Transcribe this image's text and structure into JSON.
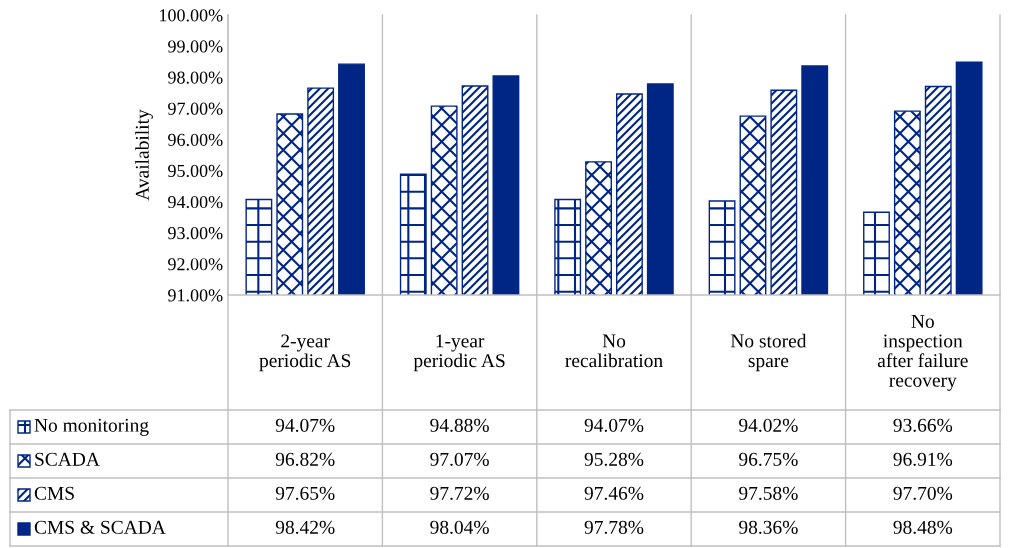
{
  "chart_data": {
    "type": "bar",
    "ylabel": "Availability",
    "categories": [
      "2-year\nperiodic AS",
      "1-year\nperiodic AS",
      "No\nrecalibration",
      "No stored\nspare",
      "No\ninspection\nafter failure\nrecovery"
    ],
    "series": [
      {
        "name": "No monitoring",
        "color": "#002685",
        "values": [
          94.07,
          94.88,
          94.07,
          94.02,
          93.66
        ],
        "value_labels": [
          "94.07%",
          "94.88%",
          "94.07%",
          "94.02%",
          "93.66%"
        ]
      },
      {
        "name": "SCADA",
        "color": "#002685",
        "values": [
          96.82,
          97.07,
          95.28,
          96.75,
          96.91
        ],
        "value_labels": [
          "96.82%",
          "97.07%",
          "95.28%",
          "96.75%",
          "96.91%"
        ]
      },
      {
        "name": "CMS",
        "color": "#002685",
        "values": [
          97.65,
          97.72,
          97.46,
          97.58,
          97.7
        ],
        "value_labels": [
          "97.65%",
          "97.72%",
          "97.46%",
          "97.58%",
          "97.70%"
        ]
      },
      {
        "name": "CMS & SCADA",
        "color": "#002685",
        "values": [
          98.42,
          98.04,
          97.78,
          98.36,
          98.48
        ],
        "value_labels": [
          "98.42%",
          "98.04%",
          "97.78%",
          "98.36%",
          "98.48%"
        ]
      }
    ],
    "ylim": [
      91,
      100
    ],
    "yticks": [
      {
        "value": 91,
        "label": "91.00%"
      },
      {
        "value": 92,
        "label": "92.00%"
      },
      {
        "value": 93,
        "label": "93.00%"
      },
      {
        "value": 94,
        "label": "94.00%"
      },
      {
        "value": 95,
        "label": "95.00%"
      },
      {
        "value": 96,
        "label": "96.00%"
      },
      {
        "value": 97,
        "label": "97.00%"
      },
      {
        "value": 98,
        "label": "98.00%"
      },
      {
        "value": 99,
        "label": "99.00%"
      },
      {
        "value": 100,
        "label": "100.00%"
      }
    ],
    "grid": "x",
    "legend": "bottom"
  }
}
